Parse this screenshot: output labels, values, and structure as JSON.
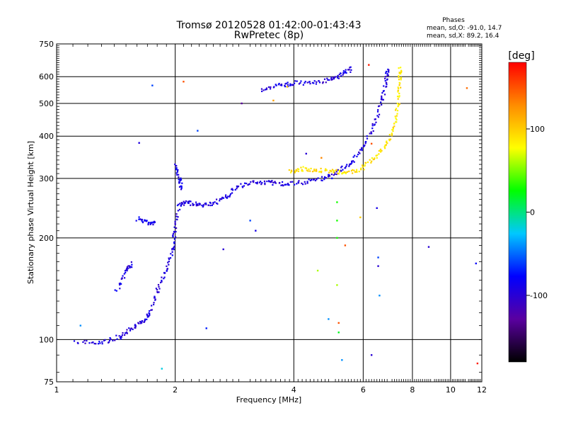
{
  "chart_data": {
    "type": "scatter",
    "title": "Tromsø 20120528 01:42:00-01:43:43",
    "subtitle": "RwPretec (8p)",
    "xlabel": "Frequency [MHz]",
    "ylabel": "Stationary phase Virtual Height [km]",
    "x_scale": "log",
    "y_scale": "log",
    "xlim": [
      1,
      12
    ],
    "ylim": [
      75,
      750
    ],
    "x_ticks": [
      1,
      2,
      4,
      6,
      8,
      10,
      12
    ],
    "y_ticks": [
      75,
      100,
      200,
      300,
      400,
      500,
      600,
      750
    ],
    "grid": true,
    "stats": {
      "heading": "Phases",
      "line1": "mean, sd,O: -91.0, 14.7",
      "line2": "mean, sd,X:  89.2, 16.4"
    },
    "colorbar": {
      "label": "[deg]",
      "ticks": [
        100,
        0,
        -100
      ],
      "tick_labels": [
        "100",
        "0",
        "-100"
      ],
      "range": [
        -180,
        180
      ],
      "stops": [
        "#000000",
        "#5a00a0",
        "#0000ff",
        "#00c8ff",
        "#00ff00",
        "#ffff00",
        "#ff8c00",
        "#ff0000"
      ]
    },
    "series": [
      {
        "phase": -95,
        "segments": [
          [
            1.12,
            98
          ],
          [
            1.3,
            98
          ],
          [
            1.45,
            102
          ],
          [
            1.55,
            108
          ],
          [
            1.65,
            113
          ],
          [
            1.72,
            120
          ],
          [
            1.8,
            140
          ],
          [
            1.9,
            160
          ],
          [
            1.97,
            185
          ],
          [
            2.0,
            210
          ],
          [
            2.05,
            250
          ],
          [
            2.15,
            255
          ],
          [
            2.3,
            250
          ],
          [
            2.5,
            252
          ],
          [
            2.7,
            265
          ],
          [
            2.9,
            285
          ],
          [
            3.2,
            292
          ],
          [
            3.5,
            292
          ],
          [
            3.8,
            288
          ],
          [
            4.3,
            293
          ],
          [
            4.8,
            300
          ],
          [
            5.2,
            315
          ],
          [
            5.6,
            335
          ],
          [
            6.0,
            370
          ],
          [
            6.4,
            430
          ],
          [
            6.7,
            510
          ],
          [
            6.85,
            580
          ],
          [
            6.92,
            630
          ]
        ]
      },
      {
        "phase": -90,
        "segments": [
          [
            2.0,
            330
          ],
          [
            2.05,
            300
          ],
          [
            2.08,
            280
          ]
        ]
      },
      {
        "phase": -92,
        "segments": [
          [
            1.42,
            140
          ],
          [
            1.5,
            160
          ],
          [
            1.55,
            168
          ]
        ]
      },
      {
        "phase": -88,
        "segments": [
          [
            1.6,
            228
          ],
          [
            1.7,
            222
          ],
          [
            1.78,
            222
          ]
        ]
      },
      {
        "phase": -96,
        "segments": [
          [
            3.3,
            545
          ],
          [
            3.7,
            565
          ],
          [
            4.0,
            575
          ],
          [
            4.5,
            575
          ],
          [
            5.0,
            590
          ],
          [
            5.3,
            610
          ],
          [
            5.6,
            635
          ]
        ]
      },
      {
        "phase": 90,
        "segments": [
          [
            3.9,
            315
          ],
          [
            4.2,
            320
          ],
          [
            4.6,
            318
          ],
          [
            5.0,
            315
          ],
          [
            5.4,
            312
          ],
          [
            5.9,
            318
          ],
          [
            6.4,
            345
          ],
          [
            6.9,
            380
          ],
          [
            7.2,
            430
          ],
          [
            7.35,
            500
          ],
          [
            7.42,
            580
          ],
          [
            7.45,
            640
          ]
        ]
      }
    ],
    "scatter_points": [
      {
        "x": 1.15,
        "y": 110,
        "phase": -40
      },
      {
        "x": 1.62,
        "y": 382,
        "phase": -95
      },
      {
        "x": 1.75,
        "y": 565,
        "phase": -60
      },
      {
        "x": 1.85,
        "y": 82,
        "phase": -20
      },
      {
        "x": 2.1,
        "y": 580,
        "phase": 150
      },
      {
        "x": 2.28,
        "y": 415,
        "phase": -60
      },
      {
        "x": 2.4,
        "y": 108,
        "phase": -70
      },
      {
        "x": 2.65,
        "y": 185,
        "phase": -100
      },
      {
        "x": 2.95,
        "y": 500,
        "phase": -130
      },
      {
        "x": 3.1,
        "y": 225,
        "phase": -60
      },
      {
        "x": 3.2,
        "y": 210,
        "phase": -90
      },
      {
        "x": 3.55,
        "y": 510,
        "phase": 120
      },
      {
        "x": 3.85,
        "y": 560,
        "phase": 100
      },
      {
        "x": 4.3,
        "y": 355,
        "phase": -100
      },
      {
        "x": 4.6,
        "y": 160,
        "phase": 60
      },
      {
        "x": 4.7,
        "y": 345,
        "phase": 130
      },
      {
        "x": 4.9,
        "y": 115,
        "phase": -40
      },
      {
        "x": 5.0,
        "y": 300,
        "phase": -80
      },
      {
        "x": 5.15,
        "y": 255,
        "phase": 30
      },
      {
        "x": 5.15,
        "y": 225,
        "phase": 30
      },
      {
        "x": 5.15,
        "y": 200,
        "phase": 30
      },
      {
        "x": 5.15,
        "y": 145,
        "phase": 60
      },
      {
        "x": 5.2,
        "y": 112,
        "phase": 150
      },
      {
        "x": 5.2,
        "y": 105,
        "phase": 20
      },
      {
        "x": 5.3,
        "y": 87,
        "phase": -40
      },
      {
        "x": 5.4,
        "y": 190,
        "phase": 150
      },
      {
        "x": 5.9,
        "y": 230,
        "phase": 100
      },
      {
        "x": 6.2,
        "y": 650,
        "phase": 170
      },
      {
        "x": 6.3,
        "y": 380,
        "phase": 150
      },
      {
        "x": 6.3,
        "y": 90,
        "phase": -100
      },
      {
        "x": 6.5,
        "y": 245,
        "phase": -90
      },
      {
        "x": 6.55,
        "y": 175,
        "phase": -60
      },
      {
        "x": 6.55,
        "y": 165,
        "phase": -100
      },
      {
        "x": 6.6,
        "y": 135,
        "phase": -40
      },
      {
        "x": 8.8,
        "y": 188,
        "phase": -100
      },
      {
        "x": 11.0,
        "y": 555,
        "phase": 140
      },
      {
        "x": 11.6,
        "y": 168,
        "phase": -80
      },
      {
        "x": 11.7,
        "y": 85,
        "phase": 170
      }
    ]
  }
}
